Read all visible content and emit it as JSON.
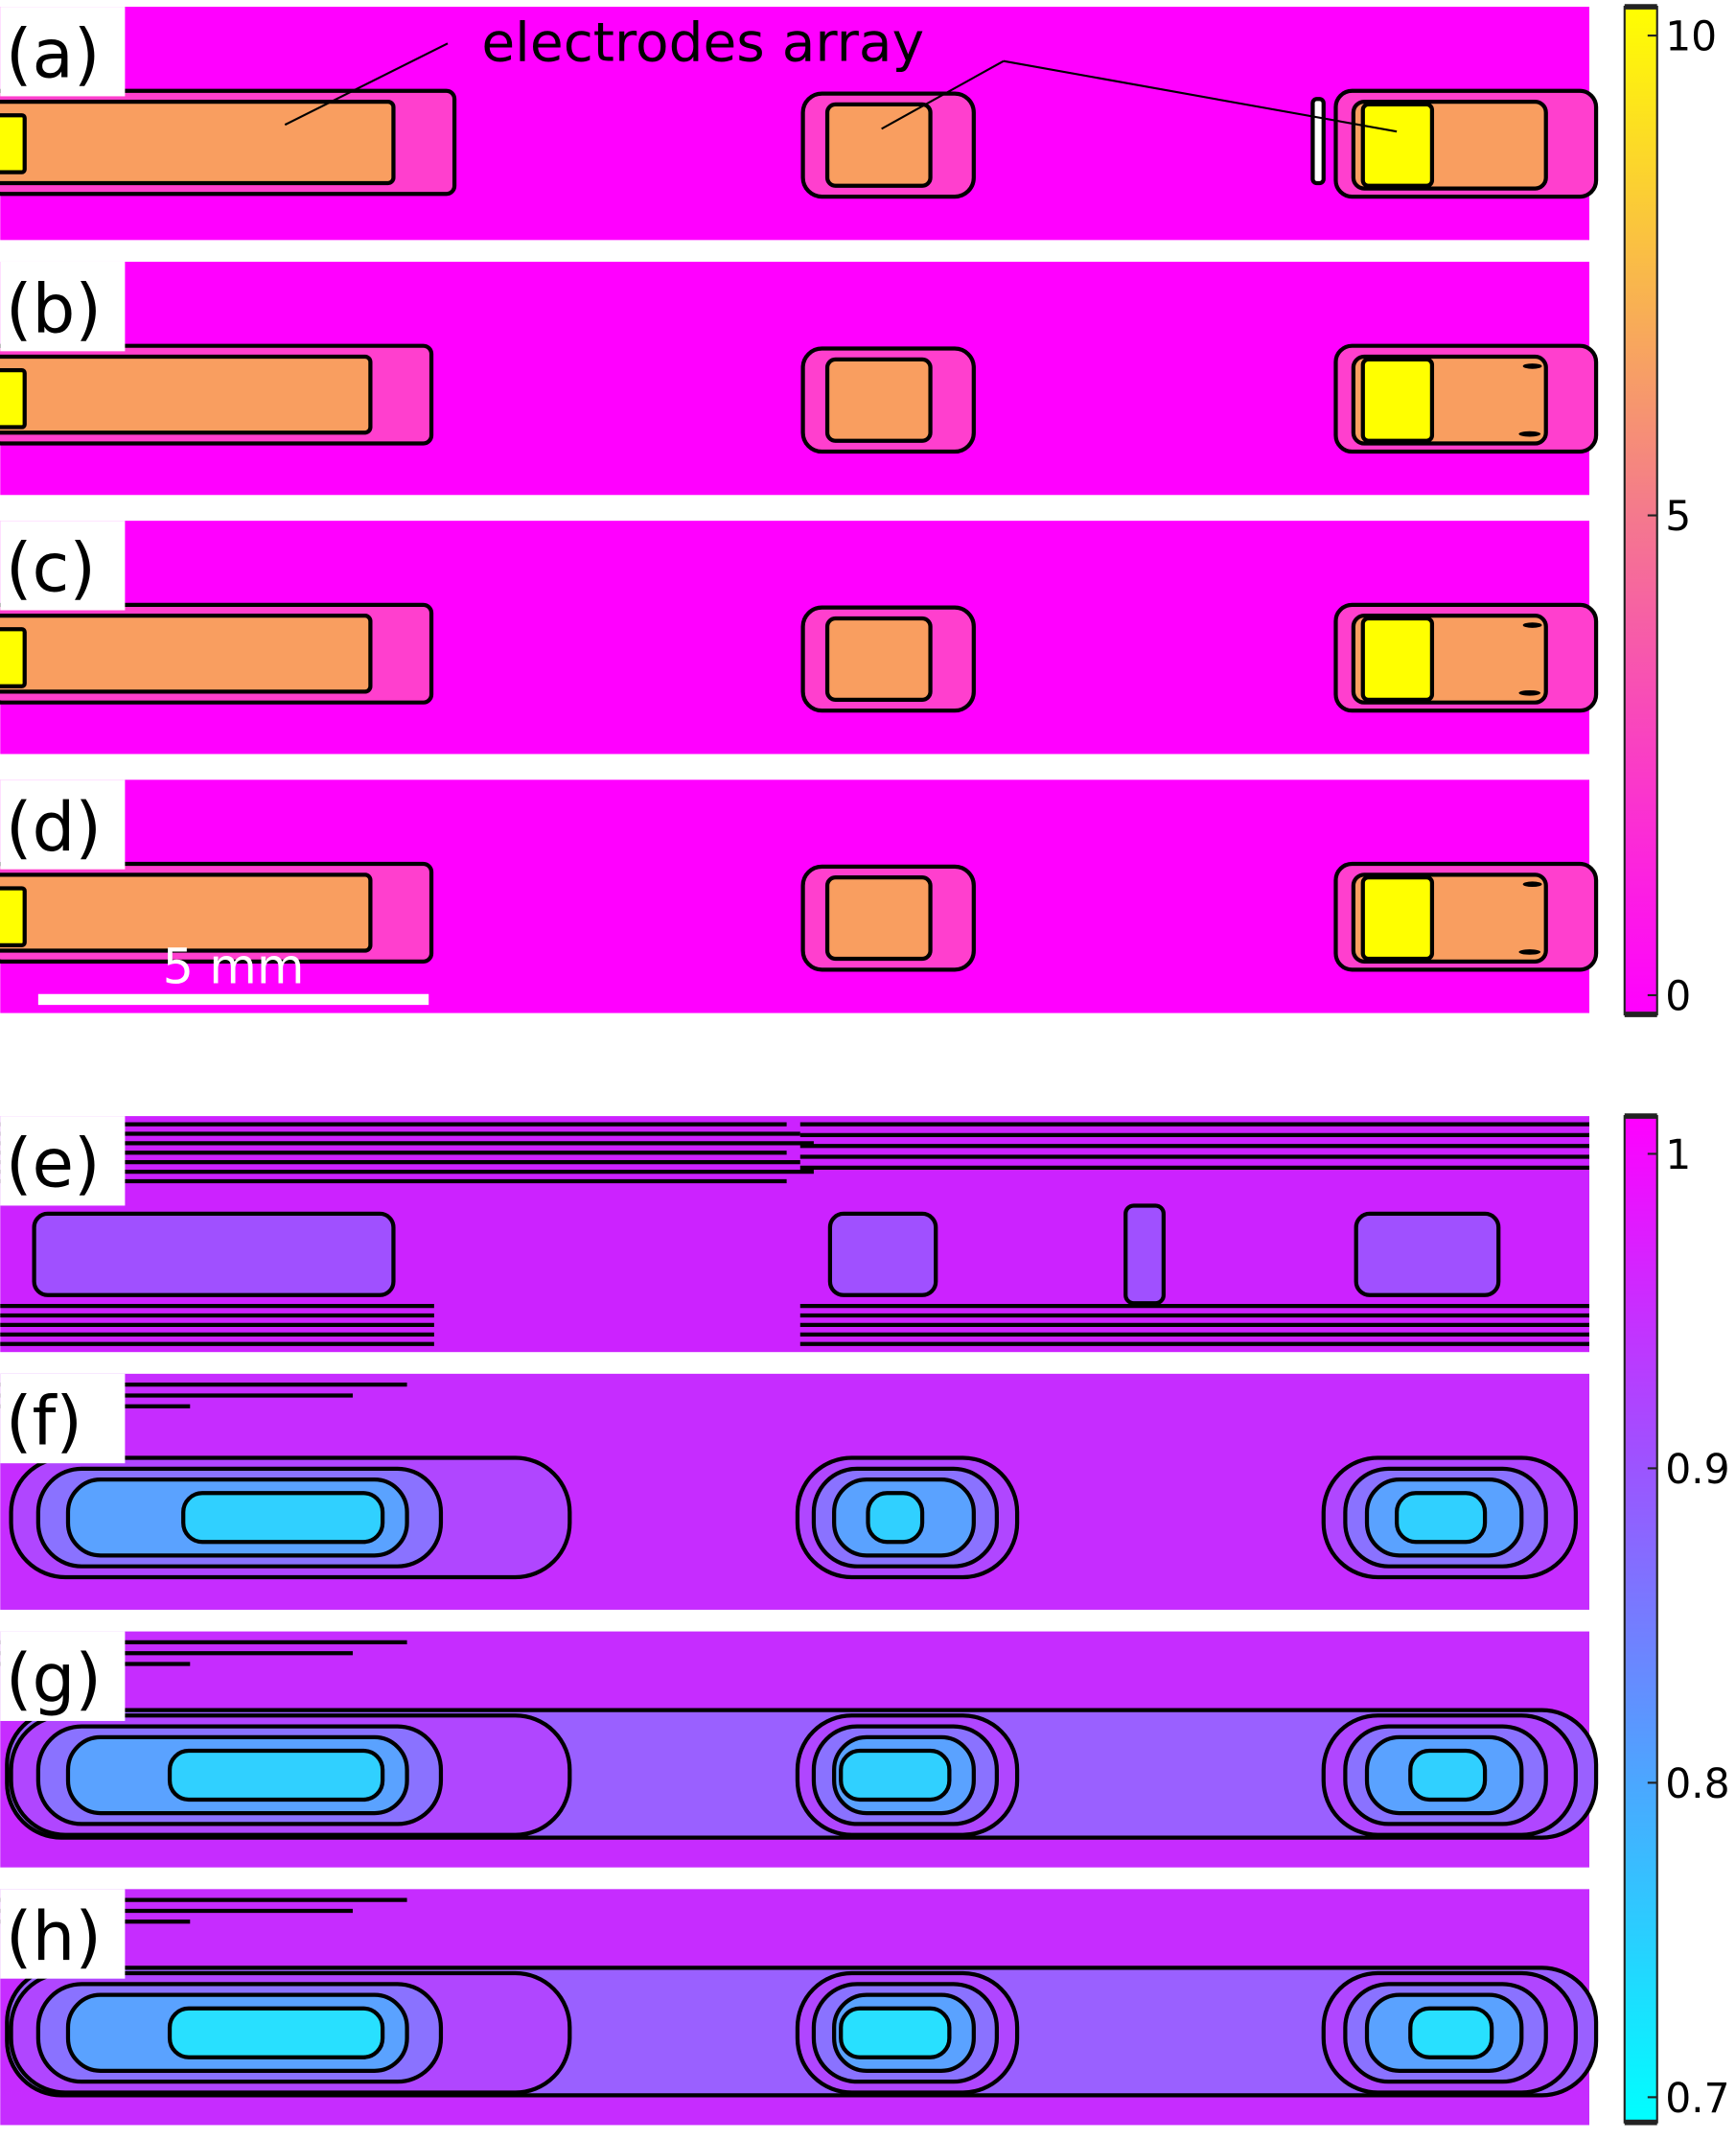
{
  "chart_data": [
    {
      "type": "contour",
      "panels": [
        "(a)",
        "(b)",
        "(c)",
        "(d)"
      ],
      "annotation": "electrodes array",
      "scale_bar": "5 mm",
      "clim": [
        -0.2,
        10.3
      ],
      "cticks": [
        0,
        5,
        10
      ],
      "colormap": [
        "#ff00ff",
        "#f47a8c",
        "#ffff00"
      ]
    },
    {
      "type": "contour",
      "panels": [
        "(e)",
        "(f)",
        "(g)",
        "(h)"
      ],
      "clim": [
        0.692,
        1.012
      ],
      "cticks": [
        0.7,
        0.8,
        0.9,
        1
      ],
      "colormap": [
        "#00ffff",
        "#4aa8ff",
        "#a050ff",
        "#ff00ff"
      ]
    }
  ]
}
